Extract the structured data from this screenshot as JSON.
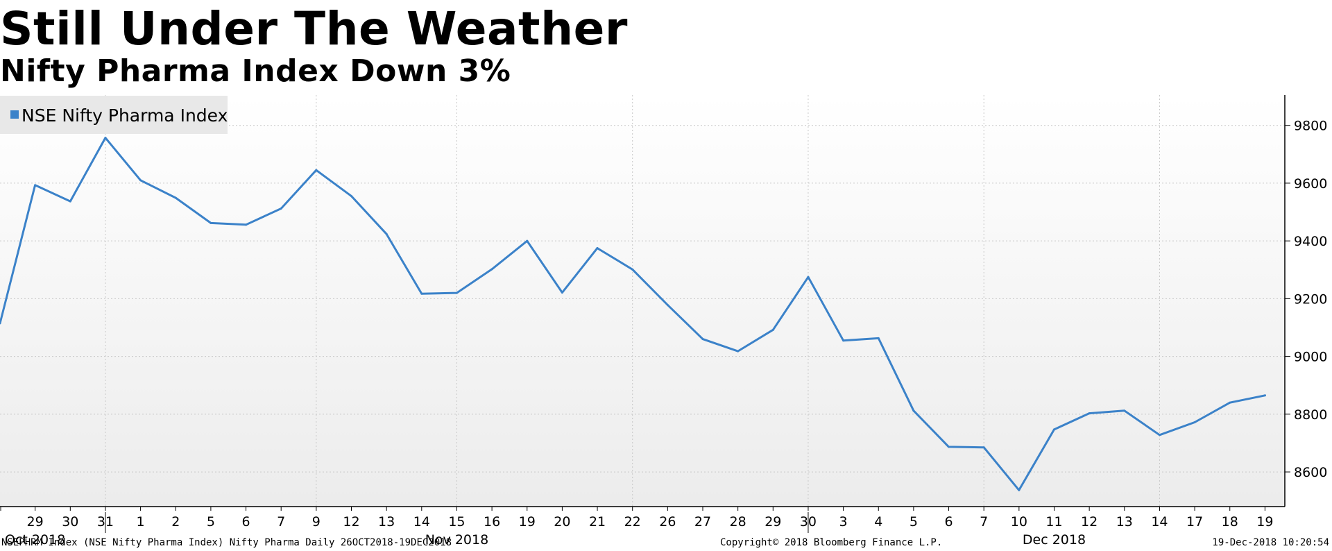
{
  "title": "Still Under The Weather",
  "subtitle": "Nifty Pharma Index Down 3%",
  "footer": {
    "left": "NSEPHRM Index (NSE Nifty Pharma Index) Nifty Pharma  Daily 26OCT2018-19DEC2018",
    "center": "Copyright© 2018 Bloomberg Finance L.P.",
    "right": "19-Dec-2018 10:20:54"
  },
  "colors": {
    "line": "#3b82c9",
    "legend_bg": "#e8e8e8",
    "grid": "#c8c8c8",
    "plot_bg_top": "#ffffff",
    "plot_bg_bottom": "#ececec"
  },
  "chart_data": {
    "type": "line",
    "title": "Still Under The Weather",
    "subtitle": "Nifty Pharma Index Down 3%",
    "x": [
      "2018-10-26",
      "2018-10-29",
      "2018-10-30",
      "2018-10-31",
      "2018-11-01",
      "2018-11-02",
      "2018-11-05",
      "2018-11-06",
      "2018-11-07",
      "2018-11-09",
      "2018-11-12",
      "2018-11-13",
      "2018-11-14",
      "2018-11-15",
      "2018-11-16",
      "2018-11-19",
      "2018-11-20",
      "2018-11-21",
      "2018-11-22",
      "2018-11-26",
      "2018-11-27",
      "2018-11-28",
      "2018-11-29",
      "2018-11-30",
      "2018-12-03",
      "2018-12-04",
      "2018-12-05",
      "2018-12-06",
      "2018-12-07",
      "2018-12-10",
      "2018-12-11",
      "2018-12-12",
      "2018-12-13",
      "2018-12-14",
      "2018-12-17",
      "2018-12-18",
      "2018-12-19"
    ],
    "x_tick_labels": [
      "29",
      "30",
      "31",
      "1",
      "2",
      "5",
      "6",
      "7",
      "9",
      "12",
      "13",
      "14",
      "15",
      "16",
      "19",
      "20",
      "21",
      "22",
      "26",
      "27",
      "28",
      "29",
      "30",
      "3",
      "4",
      "5",
      "6",
      "7",
      "10",
      "11",
      "12",
      "13",
      "14",
      "17",
      "18",
      "19"
    ],
    "month_labels": [
      {
        "label": "Oct 2018",
        "at": "2018-10-29"
      },
      {
        "label": "Nov 2018",
        "at": "2018-11-15"
      },
      {
        "label": "Dec 2018",
        "at": "2018-12-11"
      }
    ],
    "month_boundaries": [
      "2018-10-31",
      "2018-11-30"
    ],
    "series": [
      {
        "name": "NSE Nifty Pharma Index",
        "color": "#3b82c9",
        "values": [
          9115,
          9593,
          9537,
          9757,
          9610,
          9549,
          9462,
          9456,
          9512,
          9645,
          9555,
          9424,
          9217,
          9220,
          9302,
          9400,
          9221,
          9375,
          9301,
          9178,
          9060,
          9018,
          9092,
          9275,
          9055,
          9063,
          8812,
          8687,
          8685,
          8537,
          8747,
          8803,
          8812,
          8728,
          8772,
          8840,
          8865
        ]
      }
    ],
    "y_ticks": [
      8600,
      8800,
      9000,
      9200,
      9400,
      9600,
      9800
    ],
    "ylim": [
      8480,
      9905
    ],
    "y_axis_side": "right",
    "grid": true,
    "legend": "top-left"
  }
}
